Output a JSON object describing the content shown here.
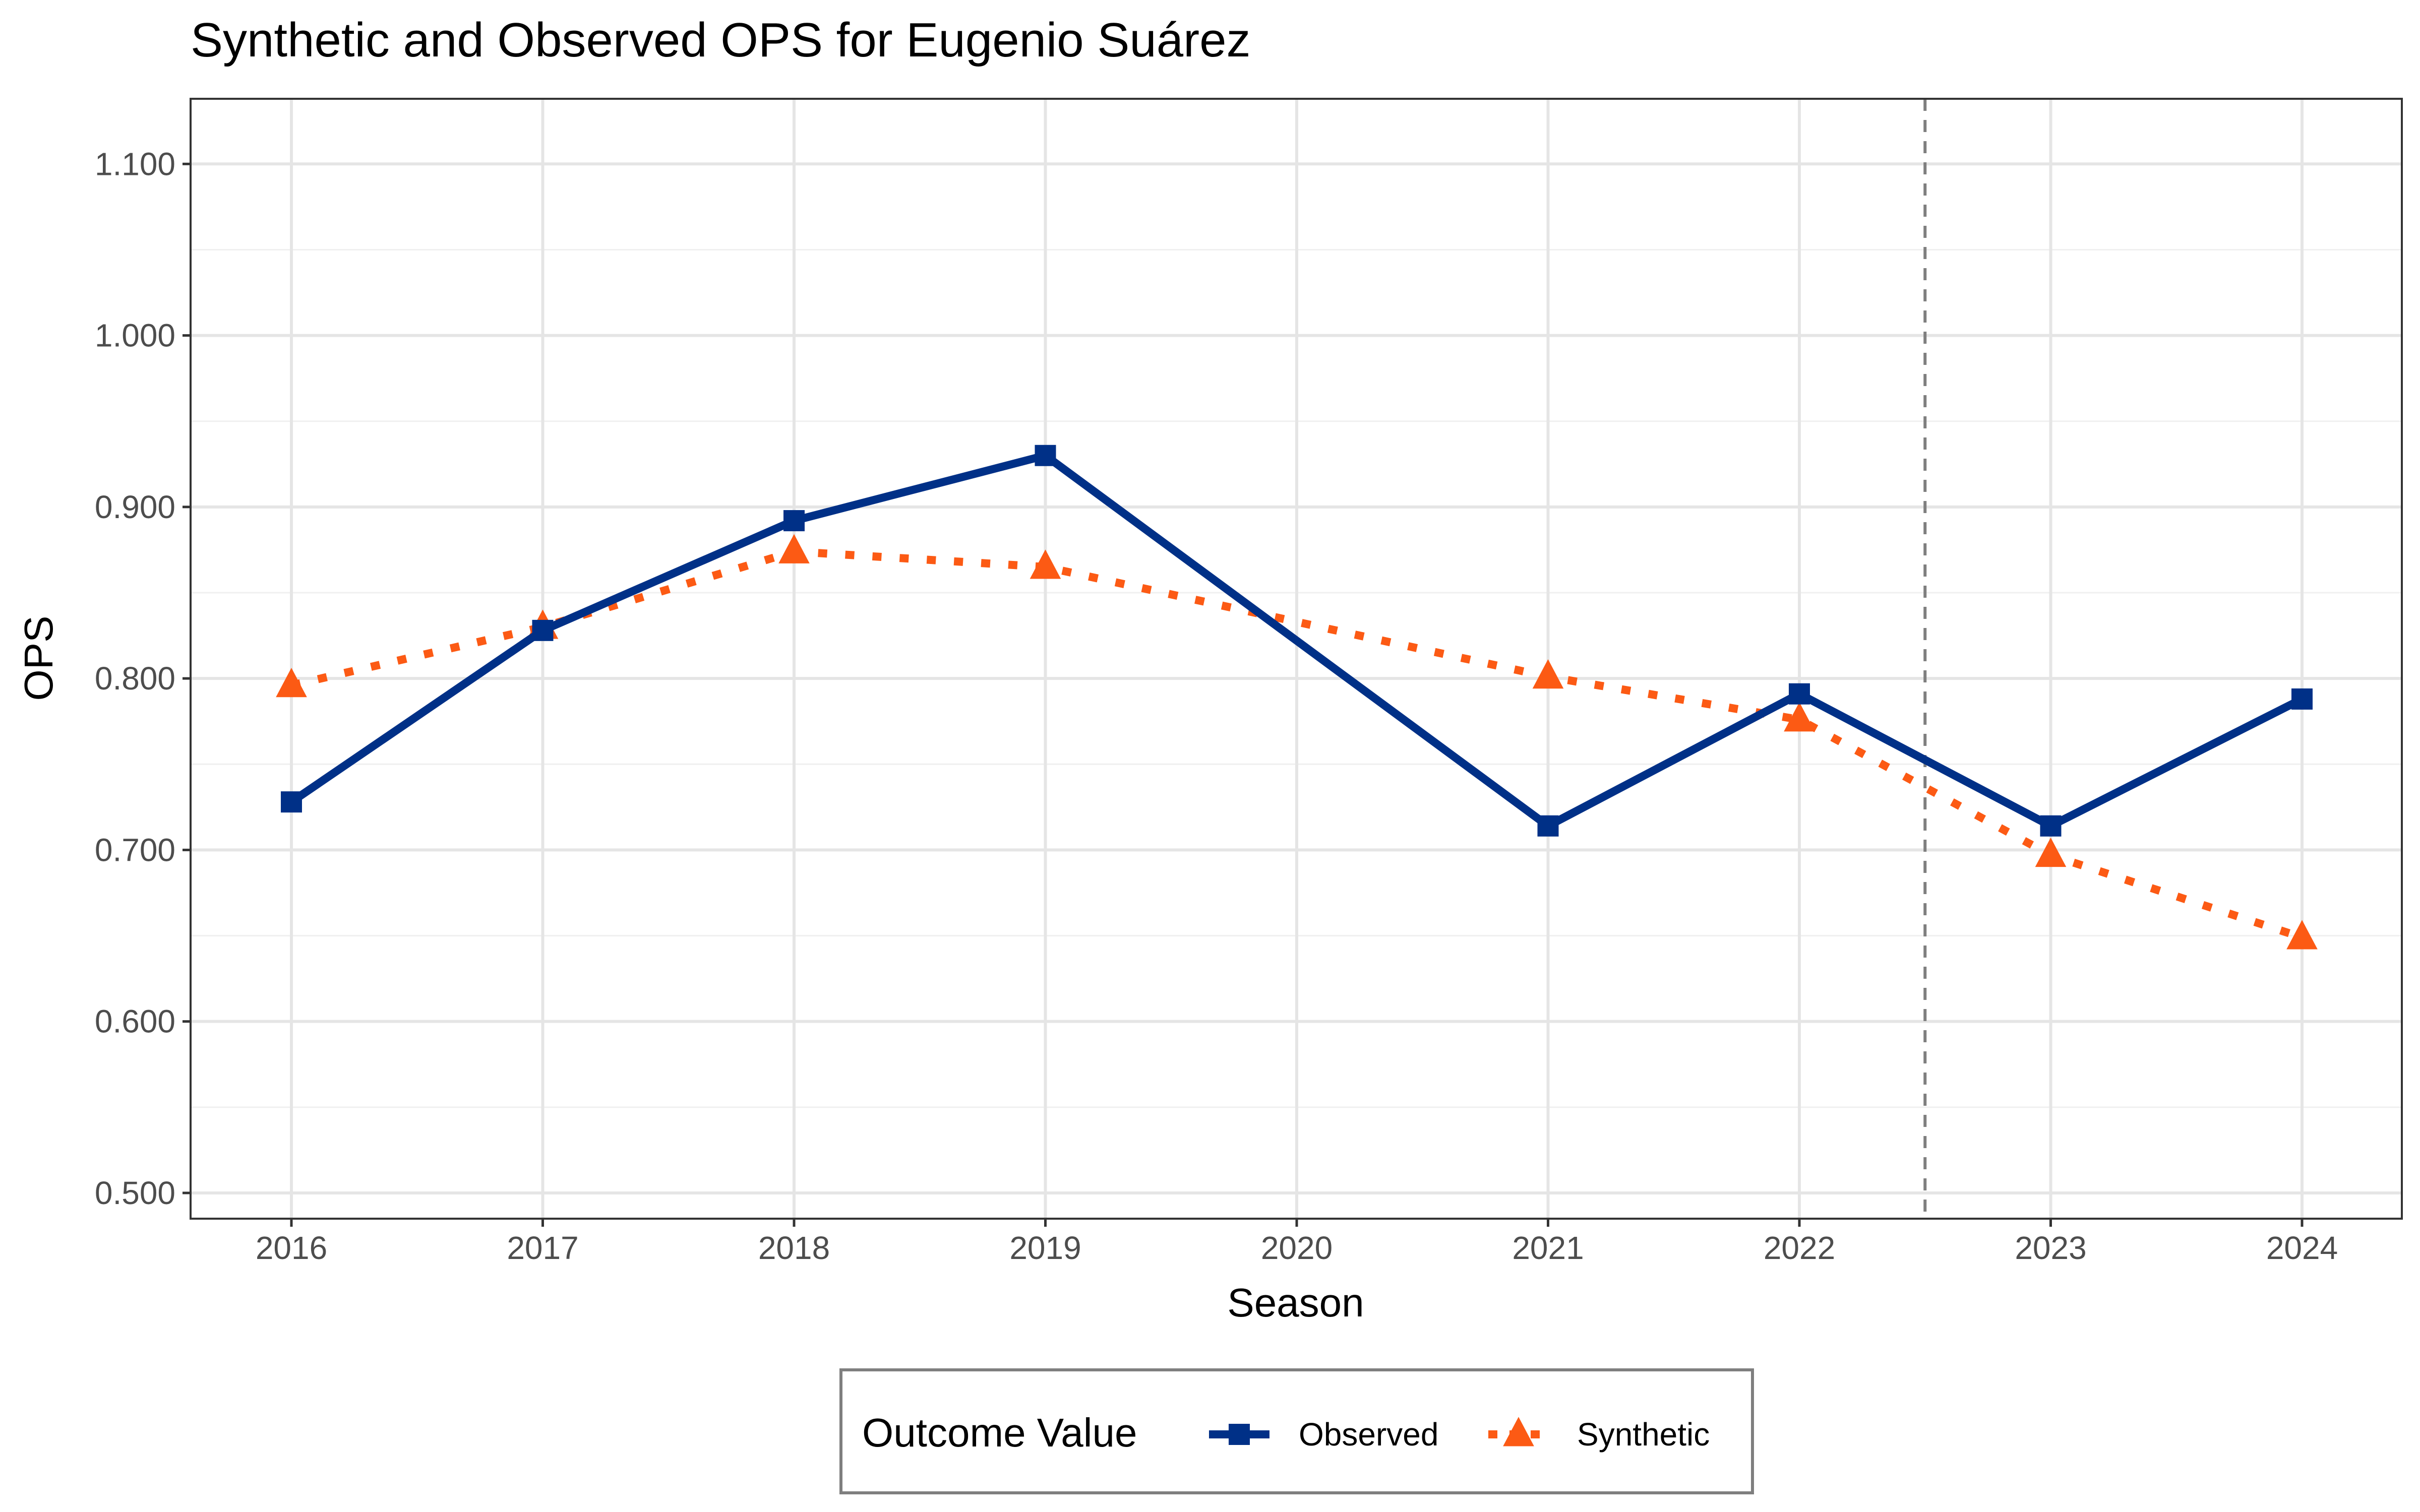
{
  "chart_data": {
    "type": "line",
    "title": "Synthetic and Observed OPS for Eugenio Suárez",
    "xlabel": "Season",
    "ylabel": "OPS",
    "x": [
      2016,
      2017,
      2018,
      2019,
      2020,
      2021,
      2022,
      2023,
      2024
    ],
    "x_tick_labels": [
      "2016",
      "2017",
      "2018",
      "2019",
      "2020",
      "2021",
      "2022",
      "2023",
      "2024"
    ],
    "y_tick_values": [
      0.5,
      0.6,
      0.7,
      0.8,
      0.9,
      1.0,
      1.1
    ],
    "y_tick_labels": [
      "0.500",
      "0.600",
      "0.700",
      "0.800",
      "0.900",
      "1.000",
      "1.100"
    ],
    "ylim": [
      0.485,
      1.138
    ],
    "grid": true,
    "treatment_line": {
      "x": 2022.5,
      "style": "dashed",
      "color": "#7f7f7f"
    },
    "series": [
      {
        "name": "Observed",
        "color": "#003087",
        "line_style": "solid",
        "marker": "square",
        "points": [
          {
            "x": 2016,
            "y": 0.728
          },
          {
            "x": 2017,
            "y": 0.828
          },
          {
            "x": 2018,
            "y": 0.892
          },
          {
            "x": 2019,
            "y": 0.93
          },
          {
            "x": 2021,
            "y": 0.714
          },
          {
            "x": 2022,
            "y": 0.791
          },
          {
            "x": 2023,
            "y": 0.714
          },
          {
            "x": 2024,
            "y": 0.788
          }
        ]
      },
      {
        "name": "Synthetic",
        "color": "#fc5a14",
        "line_style": "dotted",
        "marker": "triangle",
        "points": [
          {
            "x": 2016,
            "y": 0.796
          },
          {
            "x": 2017,
            "y": 0.83
          },
          {
            "x": 2018,
            "y": 0.874
          },
          {
            "x": 2019,
            "y": 0.865
          },
          {
            "x": 2021,
            "y": 0.801
          },
          {
            "x": 2022,
            "y": 0.776
          },
          {
            "x": 2023,
            "y": 0.697
          },
          {
            "x": 2024,
            "y": 0.649
          }
        ]
      }
    ],
    "legend": {
      "title": "Outcome Value",
      "position": "bottom"
    }
  }
}
